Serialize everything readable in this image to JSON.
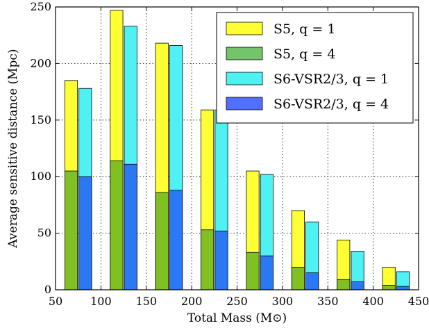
{
  "chart_data": {
    "type": "bar",
    "xlabel": "Total Mass (M⊙)",
    "ylabel": "Average sensitive distance (Mpc)",
    "xlim": [
      50,
      450
    ],
    "ylim": [
      0,
      250
    ],
    "xticks": [
      50,
      100,
      150,
      200,
      250,
      300,
      350,
      400,
      450
    ],
    "yticks": [
      0,
      50,
      100,
      150,
      200,
      250
    ],
    "grid": true,
    "legend_position": "top-right",
    "x": [
      75,
      125,
      175,
      225,
      275,
      325,
      375,
      425
    ],
    "series": [
      {
        "name": "S5, q = 1",
        "color": "#ffff33",
        "values": [
          185,
          247,
          218,
          159,
          105,
          70,
          44,
          20
        ]
      },
      {
        "name": "S5, q = 4",
        "color": "#74c46a",
        "values": [
          105,
          114,
          86,
          53,
          33,
          20,
          9,
          4
        ]
      },
      {
        "name": "S6-VSR2/3, q = 1",
        "color": "#4ff2f2",
        "values": [
          178,
          233,
          216,
          159,
          102,
          60,
          34,
          16
        ]
      },
      {
        "name": "S6-VSR2/3, q = 4",
        "color": "#5270ff",
        "values": [
          100,
          111,
          88,
          52,
          30,
          15,
          7,
          3
        ]
      }
    ],
    "overlap_colors": {
      "s5": "#80c021",
      "s6": "#2a78f4"
    }
  }
}
